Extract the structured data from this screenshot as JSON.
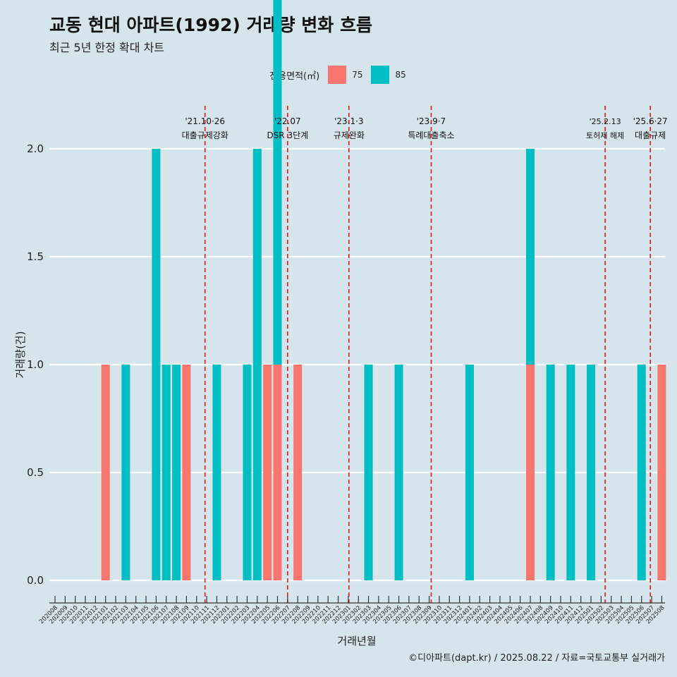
{
  "title": "교동 현대 아파트(1992) 거래량 변화 흐름",
  "subtitle": "최근 5년 한정 확대 차트",
  "caption": "©디아파트(dapt.kr) / 2025.08.22 / 자료=국토교통부 실거래가",
  "colors": {
    "background": "#d6e4eb",
    "s75": "#f8766d",
    "s85": "#00bfc4",
    "event_line": "#e31a1c"
  },
  "legend": {
    "title": "전용면적(㎡)",
    "items": [
      {
        "label": "75",
        "color": "#f8766d"
      },
      {
        "label": "85",
        "color": "#00bfc4"
      }
    ]
  },
  "chart_data": {
    "type": "bar",
    "stacked": true,
    "xlabel": "거래년월",
    "ylabel": "거래량(건)",
    "ylim": [
      0,
      2
    ],
    "yticks": [
      "0.0",
      "0.5",
      "1.0",
      "1.5",
      "2.0"
    ],
    "categories": [
      "202008",
      "202009",
      "202010",
      "202011",
      "202012",
      "202101",
      "202102",
      "202103",
      "202104",
      "202105",
      "202106",
      "202107",
      "202108",
      "202109",
      "202110",
      "202111",
      "202112",
      "202201",
      "202202",
      "202203",
      "202204",
      "202205",
      "202206",
      "202207",
      "202208",
      "202209",
      "202210",
      "202211",
      "202212",
      "202301",
      "202302",
      "202303",
      "202304",
      "202305",
      "202306",
      "202307",
      "202308",
      "202309",
      "202310",
      "202311",
      "202312",
      "202401",
      "202402",
      "202403",
      "202404",
      "202405",
      "202406",
      "202407",
      "202408",
      "202409",
      "202410",
      "202411",
      "202412",
      "202501",
      "202502",
      "202503",
      "202504",
      "202505",
      "202506",
      "202507",
      "202508"
    ],
    "bars": [
      {
        "month": "202101",
        "area": "75",
        "value": 1
      },
      {
        "month": "202103",
        "area": "85",
        "value": 1
      },
      {
        "month": "202106",
        "area": "85",
        "value": 2
      },
      {
        "month": "202107",
        "area": "85",
        "value": 1
      },
      {
        "month": "202108",
        "area": "85",
        "value": 1
      },
      {
        "month": "202109",
        "area": "75",
        "value": 1
      },
      {
        "month": "202112",
        "area": "85",
        "value": 1
      },
      {
        "month": "202203",
        "area": "85",
        "value": 1
      },
      {
        "month": "202204",
        "area": "85",
        "value": 2
      },
      {
        "month": "202205",
        "area": "75",
        "value": 1
      },
      {
        "month": "202206",
        "area": "75",
        "value": 1
      },
      {
        "month": "202206",
        "area": "85",
        "value": 2
      },
      {
        "month": "202208",
        "area": "75",
        "value": 1
      },
      {
        "month": "202303",
        "area": "85",
        "value": 1
      },
      {
        "month": "202306",
        "area": "85",
        "value": 1
      },
      {
        "month": "202401",
        "area": "85",
        "value": 1
      },
      {
        "month": "202407",
        "area": "75",
        "value": 1
      },
      {
        "month": "202407",
        "area": "85",
        "value": 1
      },
      {
        "month": "202409",
        "area": "85",
        "value": 1
      },
      {
        "month": "202411",
        "area": "85",
        "value": 1
      },
      {
        "month": "202501",
        "area": "85",
        "value": 1
      },
      {
        "month": "202506",
        "area": "85",
        "value": 1
      },
      {
        "month": "202508",
        "area": "75",
        "value": 1
      }
    ],
    "events": [
      {
        "date": "2021-10-26",
        "label1": "'21.10·26",
        "label2": "대출규제강화"
      },
      {
        "date": "2022-07-01",
        "label1": "'22.07",
        "label2": "DSR 3단계"
      },
      {
        "date": "2023-01-03",
        "label1": "'23.1·3",
        "label2": "규제완화"
      },
      {
        "date": "2023-09-07",
        "label1": "'23.9·7",
        "label2": "특례대출축소"
      },
      {
        "date": "2025-02-13",
        "label1": "'25.2.13",
        "label2": "토허제 해제"
      },
      {
        "date": "2025-06-27",
        "label1": "'25.6·27",
        "label2": "대출규제"
      }
    ]
  }
}
